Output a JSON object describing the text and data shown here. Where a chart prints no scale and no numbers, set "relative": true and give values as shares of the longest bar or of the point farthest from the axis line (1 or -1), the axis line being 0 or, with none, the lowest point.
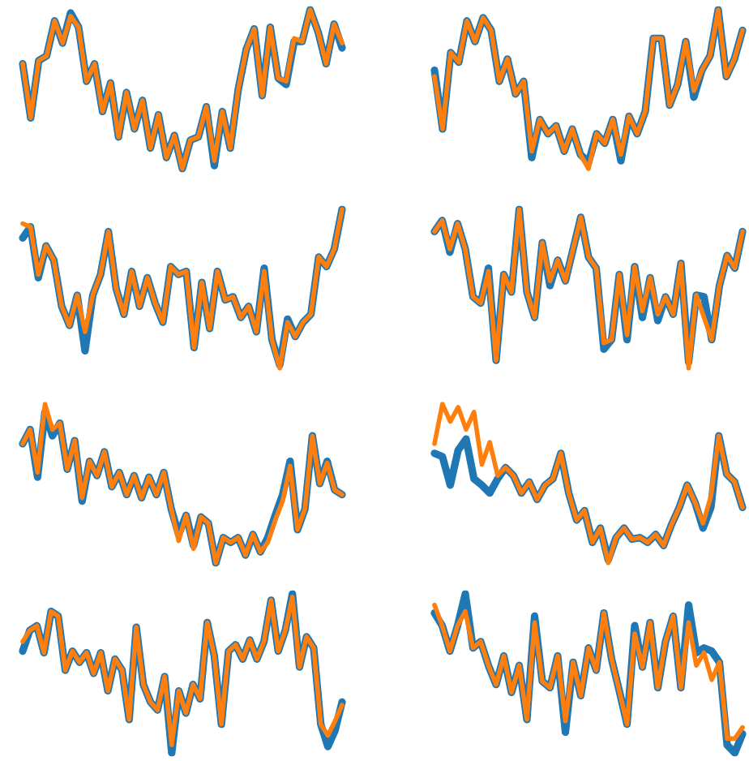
{
  "chart_data": [
    {
      "type": "line",
      "relative": true,
      "categories": [
        null,
        null,
        null,
        null,
        null,
        null,
        null,
        null,
        null,
        null,
        null,
        null,
        null,
        null,
        null,
        null,
        null,
        null,
        null,
        null,
        null,
        null,
        null,
        null,
        null,
        null,
        null,
        null,
        null,
        null,
        null,
        null,
        null,
        null,
        null,
        null,
        null,
        null,
        null,
        null,
        null
      ],
      "series": [
        {
          "color": "#1f77b4",
          "values": [
            0.66,
            0.32,
            0.68,
            0.71,
            0.93,
            0.79,
            0.98,
            0.89,
            0.55,
            0.66,
            0.36,
            0.54,
            0.2,
            0.48,
            0.25,
            0.43,
            0.13,
            0.34,
            0.07,
            0.21,
            0,
            0.18,
            0.2,
            0.39,
            0.02,
            0.36,
            0.13,
            0.5,
            0.75,
            0.88,
            0.46,
            0.89,
            0.57,
            0.53,
            0.8,
            0.8,
            1,
            0.86,
            0.66,
            0.91,
            0.76
          ]
        },
        {
          "color": "#ff7f0e",
          "values": [
            0.66,
            0.32,
            0.68,
            0.71,
            0.93,
            0.79,
            0.96,
            0.89,
            0.55,
            0.66,
            0.36,
            0.54,
            0.2,
            0.48,
            0.25,
            0.43,
            0.13,
            0.34,
            0.07,
            0.21,
            0,
            0.18,
            0.2,
            0.39,
            0.05,
            0.36,
            0.13,
            0.5,
            0.75,
            0.88,
            0.46,
            0.89,
            0.57,
            0.55,
            0.82,
            0.8,
            1,
            0.86,
            0.66,
            0.91,
            0.79
          ]
        }
      ]
    },
    {
      "type": "line",
      "relative": true,
      "categories": [
        null,
        null,
        null,
        null,
        null,
        null,
        null,
        null,
        null,
        null,
        null,
        null,
        null,
        null,
        null,
        null,
        null,
        null,
        null,
        null,
        null,
        null,
        null,
        null,
        null,
        null,
        null,
        null,
        null,
        null,
        null,
        null,
        null,
        null,
        null,
        null,
        null,
        null,
        null
      ],
      "series": [
        {
          "color": "#1f77b4",
          "values": [
            0.62,
            0.25,
            0.73,
            0.67,
            0.93,
            0.8,
            0.95,
            0.87,
            0.55,
            0.69,
            0.47,
            0.55,
            0.07,
            0.31,
            0.22,
            0.27,
            0.11,
            0.25,
            0.09,
            0.04,
            0.22,
            0.16,
            0.31,
            0.05,
            0.33,
            0.22,
            0.36,
            0.82,
            0.82,
            0.4,
            0.53,
            0.8,
            0.45,
            0.62,
            0.71,
            1,
            0.58,
            0.69,
            0.87
          ]
        },
        {
          "color": "#ff7f0e",
          "values": [
            0.58,
            0.25,
            0.73,
            0.67,
            0.93,
            0.8,
            0.95,
            0.87,
            0.55,
            0.69,
            0.47,
            0.55,
            0.11,
            0.31,
            0.22,
            0.27,
            0.11,
            0.25,
            0.09,
            0,
            0.22,
            0.16,
            0.31,
            0.09,
            0.33,
            0.22,
            0.36,
            0.82,
            0.82,
            0.4,
            0.53,
            0.8,
            0.49,
            0.62,
            0.71,
            1,
            0.58,
            0.69,
            0.87
          ]
        }
      ]
    },
    {
      "type": "line",
      "relative": true,
      "categories": [
        null,
        null,
        null,
        null,
        null,
        null,
        null,
        null,
        null,
        null,
        null,
        null,
        null,
        null,
        null,
        null,
        null,
        null,
        null,
        null,
        null,
        null,
        null,
        null,
        null,
        null,
        null,
        null,
        null,
        null,
        null,
        null,
        null,
        null,
        null,
        null,
        null,
        null,
        null,
        null,
        null,
        null
      ],
      "series": [
        {
          "color": "#1f77b4",
          "values": [
            0.82,
            0.89,
            0.57,
            0.77,
            0.68,
            0.39,
            0.27,
            0.46,
            0.11,
            0.46,
            0.59,
            0.86,
            0.5,
            0.34,
            0.61,
            0.39,
            0.57,
            0.41,
            0.29,
            0.64,
            0.59,
            0.61,
            0.13,
            0.54,
            0.25,
            0.61,
            0.43,
            0.45,
            0.32,
            0.39,
            0.23,
            0.63,
            0.18,
            0.02,
            0.31,
            0.2,
            0.29,
            0.34,
            0.7,
            0.64,
            0.75,
            1
          ]
        },
        {
          "color": "#ff7f0e",
          "values": [
            0.91,
            0.89,
            0.59,
            0.77,
            0.68,
            0.39,
            0.27,
            0.46,
            0.23,
            0.46,
            0.59,
            0.86,
            0.5,
            0.34,
            0.61,
            0.39,
            0.57,
            0.41,
            0.29,
            0.64,
            0.59,
            0.61,
            0.13,
            0.54,
            0.25,
            0.61,
            0.43,
            0.45,
            0.32,
            0.39,
            0.23,
            0.61,
            0.18,
            0,
            0.29,
            0.2,
            0.29,
            0.34,
            0.7,
            0.64,
            0.75,
            1
          ]
        }
      ]
    },
    {
      "type": "line",
      "relative": true,
      "categories": [
        null,
        null,
        null,
        null,
        null,
        null,
        null,
        null,
        null,
        null,
        null,
        null,
        null,
        null,
        null,
        null,
        null,
        null,
        null,
        null,
        null,
        null,
        null,
        null,
        null,
        null,
        null,
        null,
        null,
        null,
        null,
        null,
        null,
        null,
        null,
        null,
        null,
        null,
        null,
        null,
        null
      ],
      "series": [
        {
          "color": "#1f77b4",
          "values": [
            0.86,
            0.93,
            0.73,
            0.91,
            0.75,
            0.45,
            0.41,
            0.63,
            0.05,
            0.59,
            0.48,
            1,
            0.48,
            0.32,
            0.79,
            0.52,
            0.68,
            0.55,
            0.75,
            0.95,
            0.7,
            0.63,
            0.12,
            0.18,
            0.59,
            0.18,
            0.64,
            0.32,
            0.57,
            0.3,
            0.45,
            0.34,
            0.66,
            0.04,
            0.46,
            0.45,
            0.18,
            0.52,
            0.71,
            0.63,
            0.86
          ]
        },
        {
          "color": "#ff7f0e",
          "values": [
            0.86,
            0.93,
            0.75,
            0.91,
            0.75,
            0.45,
            0.41,
            0.61,
            0.05,
            0.59,
            0.48,
            1,
            0.48,
            0.32,
            0.79,
            0.55,
            0.68,
            0.55,
            0.75,
            0.95,
            0.7,
            0.63,
            0.16,
            0.18,
            0.59,
            0.21,
            0.64,
            0.36,
            0.57,
            0.34,
            0.45,
            0.34,
            0.66,
            0,
            0.46,
            0.32,
            0.18,
            0.52,
            0.71,
            0.63,
            0.86
          ]
        }
      ]
    },
    {
      "type": "line",
      "relative": true,
      "categories": [
        null,
        null,
        null,
        null,
        null,
        null,
        null,
        null,
        null,
        null,
        null,
        null,
        null,
        null,
        null,
        null,
        null,
        null,
        null,
        null,
        null,
        null,
        null,
        null,
        null,
        null,
        null,
        null,
        null,
        null,
        null,
        null,
        null,
        null,
        null,
        null,
        null,
        null,
        null,
        null,
        null,
        null,
        null,
        null
      ],
      "series": [
        {
          "color": "#1f77b4",
          "values": [
            0.75,
            0.84,
            0.54,
            0.95,
            0.8,
            0.88,
            0.59,
            0.77,
            0.39,
            0.64,
            0.55,
            0.7,
            0.48,
            0.57,
            0.43,
            0.55,
            0.41,
            0.54,
            0.43,
            0.57,
            0.34,
            0.18,
            0.3,
            0.11,
            0.29,
            0.25,
            0,
            0.16,
            0.13,
            0.16,
            0.05,
            0.18,
            0.07,
            0.16,
            0.3,
            0.43,
            0.64,
            0.21,
            0.34,
            0.8,
            0.5,
            0.64,
            0.46,
            0.43
          ]
        },
        {
          "color": "#ff7f0e",
          "values": [
            0.75,
            0.84,
            0.57,
            1,
            0.84,
            0.88,
            0.59,
            0.77,
            0.41,
            0.64,
            0.55,
            0.7,
            0.48,
            0.57,
            0.43,
            0.55,
            0.41,
            0.54,
            0.43,
            0.57,
            0.34,
            0.14,
            0.3,
            0.09,
            0.29,
            0.25,
            0,
            0.16,
            0.13,
            0.16,
            0.05,
            0.18,
            0.07,
            0.13,
            0.27,
            0.39,
            0.61,
            0.21,
            0.34,
            0.8,
            0.5,
            0.63,
            0.46,
            0.43
          ]
        }
      ]
    },
    {
      "type": "line",
      "relative": true,
      "categories": [
        null,
        null,
        null,
        null,
        null,
        null,
        null,
        null,
        null,
        null,
        null,
        null,
        null,
        null,
        null,
        null,
        null,
        null,
        null,
        null,
        null,
        null,
        null,
        null,
        null,
        null,
        null,
        null,
        null,
        null,
        null,
        null,
        null,
        null,
        null,
        null,
        null,
        null,
        null,
        null
      ],
      "series": [
        {
          "color": "#1f77b4",
          "values": [
            0.69,
            0.67,
            0.49,
            0.71,
            0.78,
            0.53,
            0.49,
            0.44,
            0.53,
            0.6,
            0.55,
            0.44,
            0.51,
            0.4,
            0.49,
            0.53,
            0.69,
            0.44,
            0.27,
            0.33,
            0.13,
            0.22,
            0.02,
            0.16,
            0.22,
            0.15,
            0.16,
            0.13,
            0.18,
            0.11,
            0.24,
            0.35,
            0.49,
            0.38,
            0.22,
            0.35,
            0.8,
            0.56,
            0.51,
            0.35
          ]
        },
        {
          "color": "#ff7f0e",
          "values": [
            0.75,
            1,
            0.89,
            0.98,
            0.84,
            0.95,
            0.62,
            0.76,
            0.55,
            0.6,
            0.55,
            0.44,
            0.51,
            0.4,
            0.49,
            0.53,
            0.69,
            0.44,
            0.27,
            0.33,
            0.13,
            0.22,
            0,
            0.16,
            0.22,
            0.15,
            0.16,
            0.13,
            0.18,
            0.11,
            0.24,
            0.35,
            0.49,
            0.38,
            0.25,
            0.42,
            0.8,
            0.56,
            0.51,
            0.35
          ]
        }
      ]
    },
    {
      "type": "line",
      "relative": true,
      "categories": [
        null,
        null,
        null,
        null,
        null,
        null,
        null,
        null,
        null,
        null,
        null,
        null,
        null,
        null,
        null,
        null,
        null,
        null,
        null,
        null,
        null,
        null,
        null,
        null,
        null,
        null,
        null,
        null,
        null,
        null,
        null,
        null,
        null,
        null,
        null,
        null,
        null,
        null,
        null,
        null,
        null,
        null,
        null,
        null,
        null,
        null
      ],
      "series": [
        {
          "color": "#1f77b4",
          "values": [
            0.64,
            0.77,
            0.8,
            0.63,
            0.89,
            0.86,
            0.52,
            0.64,
            0.57,
            0.63,
            0.5,
            0.63,
            0.39,
            0.59,
            0.52,
            0.21,
            0.79,
            0.43,
            0.32,
            0.27,
            0.48,
            0,
            0.39,
            0.25,
            0.43,
            0.34,
            0.82,
            0.61,
            0.18,
            0.64,
            0.68,
            0.59,
            0.71,
            0.59,
            0.7,
            0.96,
            0.64,
            0.77,
            1,
            0.54,
            0.73,
            0.66,
            0.18,
            0.04,
            0.14,
            0.32
          ]
        },
        {
          "color": "#ff7f0e",
          "values": [
            0.7,
            0.77,
            0.8,
            0.63,
            0.89,
            0.86,
            0.52,
            0.64,
            0.57,
            0.63,
            0.5,
            0.63,
            0.39,
            0.59,
            0.52,
            0.21,
            0.79,
            0.43,
            0.32,
            0.27,
            0.48,
            0.05,
            0.39,
            0.25,
            0.43,
            0.34,
            0.82,
            0.61,
            0.18,
            0.64,
            0.68,
            0.59,
            0.71,
            0.59,
            0.7,
            0.96,
            0.64,
            0.77,
            0.98,
            0.54,
            0.73,
            0.66,
            0.18,
            0.11,
            0.2,
            0.3
          ]
        }
      ]
    },
    {
      "type": "line",
      "relative": true,
      "categories": [
        null,
        null,
        null,
        null,
        null,
        null,
        null,
        null,
        null,
        null,
        null,
        null,
        null,
        null,
        null,
        null,
        null,
        null,
        null,
        null,
        null,
        null,
        null,
        null,
        null,
        null,
        null,
        null,
        null,
        null,
        null,
        null,
        null,
        null,
        null,
        null,
        null,
        null,
        null,
        null,
        null
      ],
      "series": [
        {
          "color": "#1f77b4",
          "values": [
            0.88,
            0.8,
            0.64,
            0.8,
            1,
            0.66,
            0.7,
            0.55,
            0.43,
            0.61,
            0.38,
            0.55,
            0.21,
            0.86,
            0.45,
            0.41,
            0.61,
            0.13,
            0.57,
            0.36,
            0.66,
            0.52,
            0.88,
            0.59,
            0.39,
            0.18,
            0.8,
            0.54,
            0.82,
            0.41,
            0.7,
            0.86,
            0.41,
            0.93,
            0.63,
            0.66,
            0.64,
            0.57,
            0.05,
            0,
            0.12
          ]
        },
        {
          "color": "#ff7f0e",
          "values": [
            0.93,
            0.8,
            0.64,
            0.8,
            0.89,
            0.66,
            0.7,
            0.55,
            0.43,
            0.61,
            0.38,
            0.55,
            0.21,
            0.82,
            0.45,
            0.41,
            0.61,
            0.2,
            0.57,
            0.36,
            0.66,
            0.52,
            0.88,
            0.59,
            0.39,
            0.18,
            0.75,
            0.54,
            0.82,
            0.41,
            0.7,
            0.86,
            0.41,
            0.82,
            0.55,
            0.63,
            0.46,
            0.57,
            0.09,
            0.09,
            0.16
          ]
        }
      ]
    }
  ]
}
